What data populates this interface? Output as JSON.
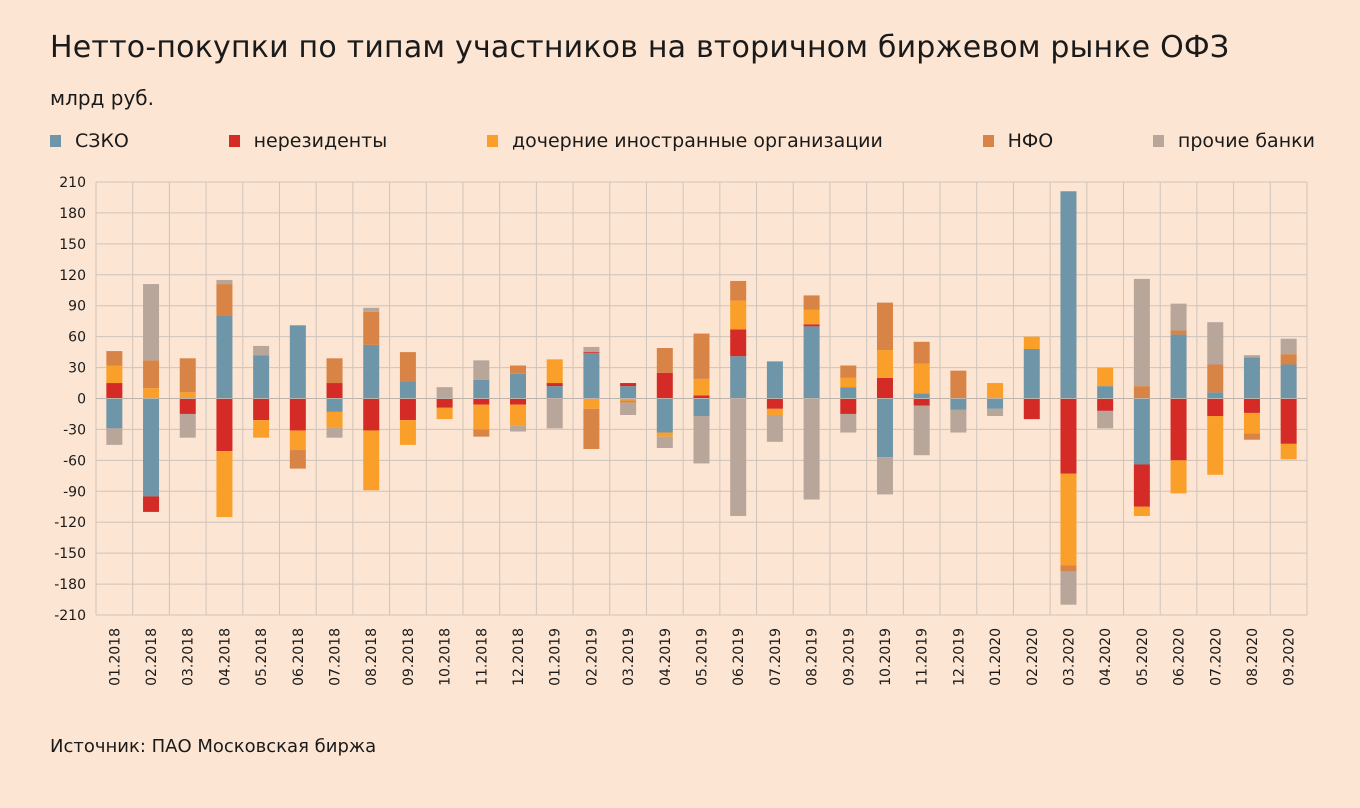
{
  "title": "Нетто-покупки по типам участников на вторичном биржевом рынке ОФЗ",
  "subtitle": "млрд руб.",
  "source": "Источник: ПАО Московская биржа",
  "chart_data": {
    "type": "bar",
    "stacked": true,
    "title": "Нетто-покупки по типам участников на вторичном биржевом рынке ОФЗ",
    "ylabel": "млрд руб.",
    "ylim": [
      -210,
      210
    ],
    "yticks": [
      210,
      180,
      150,
      120,
      90,
      60,
      30,
      0,
      -30,
      -60,
      -90,
      -120,
      -150,
      -180,
      -210
    ],
    "grid": true,
    "legend_position": "top",
    "categories": [
      "01.2018",
      "02.2018",
      "03.2018",
      "04.2018",
      "05.2018",
      "06.2018",
      "07.2018",
      "08.2018",
      "09.2018",
      "10.2018",
      "11.2018",
      "12.2018",
      "01.2019",
      "02.2019",
      "03.2019",
      "04.2019",
      "05.2019",
      "06.2019",
      "07.2019",
      "08.2019",
      "09.2019",
      "10.2019",
      "11.2019",
      "12.2019",
      "01.2020",
      "02.2020",
      "03.2020",
      "04.2020",
      "05.2020",
      "06.2020",
      "07.2020",
      "08.2020",
      "09.2020"
    ],
    "series": [
      {
        "name": "СЗКО",
        "color": "#6e95a8",
        "values": [
          -29,
          -95,
          0,
          80,
          42,
          71,
          -13,
          52,
          16,
          0,
          18,
          24,
          12,
          44,
          12,
          -33,
          -17,
          41,
          36,
          70,
          11,
          -57,
          5,
          -11,
          -10,
          48,
          201,
          12,
          -64,
          62,
          6,
          40,
          33
        ]
      },
      {
        "name": "нерезиденты",
        "color": "#d42b27",
        "values": [
          15,
          -15,
          -15,
          -51,
          -21,
          -31,
          15,
          -31,
          -21,
          -9,
          -6,
          -6,
          3,
          1,
          3,
          25,
          3,
          26,
          -10,
          2,
          -15,
          20,
          -7,
          0,
          0,
          -20,
          -73,
          -12,
          -41,
          -60,
          -17,
          -14,
          -44
        ]
      },
      {
        "name": "дочерние иностранные организации",
        "color": "#faa02a",
        "values": [
          17,
          10,
          6,
          -64,
          -17,
          -19,
          -15,
          -58,
          -24,
          -11,
          -24,
          -20,
          23,
          -10,
          -2,
          -4,
          16,
          28,
          -6,
          14,
          9,
          27,
          29,
          0,
          15,
          12,
          -89,
          18,
          -9,
          -32,
          -57,
          -20,
          -15
        ]
      },
      {
        "name": "НФО",
        "color": "#d98447",
        "values": [
          14,
          27,
          33,
          31,
          0,
          -18,
          24,
          32,
          29,
          0,
          -7,
          8,
          0,
          -39,
          -2,
          24,
          44,
          19,
          0,
          14,
          12,
          46,
          21,
          27,
          0,
          0,
          -6,
          0,
          12,
          4,
          27,
          -6,
          10
        ]
      },
      {
        "name": "прочие банки",
        "color": "#b8a69a",
        "values": [
          -16,
          74,
          -23,
          4,
          9,
          0,
          -10,
          4,
          0,
          11,
          19,
          -6,
          -29,
          5,
          -12,
          -11,
          -46,
          -114,
          -26,
          -98,
          -18,
          -36,
          -48,
          -22,
          -7,
          0,
          -32,
          -17,
          104,
          26,
          41,
          2,
          15
        ]
      }
    ]
  }
}
